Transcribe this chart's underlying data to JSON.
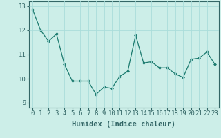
{
  "x": [
    0,
    1,
    2,
    3,
    4,
    5,
    6,
    7,
    8,
    9,
    10,
    11,
    12,
    13,
    14,
    15,
    16,
    17,
    18,
    19,
    20,
    21,
    22,
    23
  ],
  "y": [
    12.85,
    12.0,
    11.55,
    11.85,
    10.6,
    9.9,
    9.9,
    9.9,
    9.35,
    9.65,
    9.6,
    10.1,
    10.3,
    11.8,
    10.65,
    10.7,
    10.45,
    10.45,
    10.2,
    10.05,
    10.8,
    10.85,
    11.1,
    10.6
  ],
  "line_color": "#1a7a6e",
  "marker": "D",
  "marker_size": 2.0,
  "bg_color": "#cceee8",
  "grid_color": "#aaddda",
  "xlabel": "Humidex (Indice chaleur)",
  "ylim": [
    8.8,
    13.2
  ],
  "xlim": [
    -0.5,
    23.5
  ],
  "yticks": [
    9,
    10,
    11,
    12,
    13
  ],
  "xticks": [
    0,
    1,
    2,
    3,
    4,
    5,
    6,
    7,
    8,
    9,
    10,
    11,
    12,
    13,
    14,
    15,
    16,
    17,
    18,
    19,
    20,
    21,
    22,
    23
  ],
  "tick_fontsize": 6.5,
  "xlabel_fontsize": 7.5,
  "spine_color": "#336666"
}
